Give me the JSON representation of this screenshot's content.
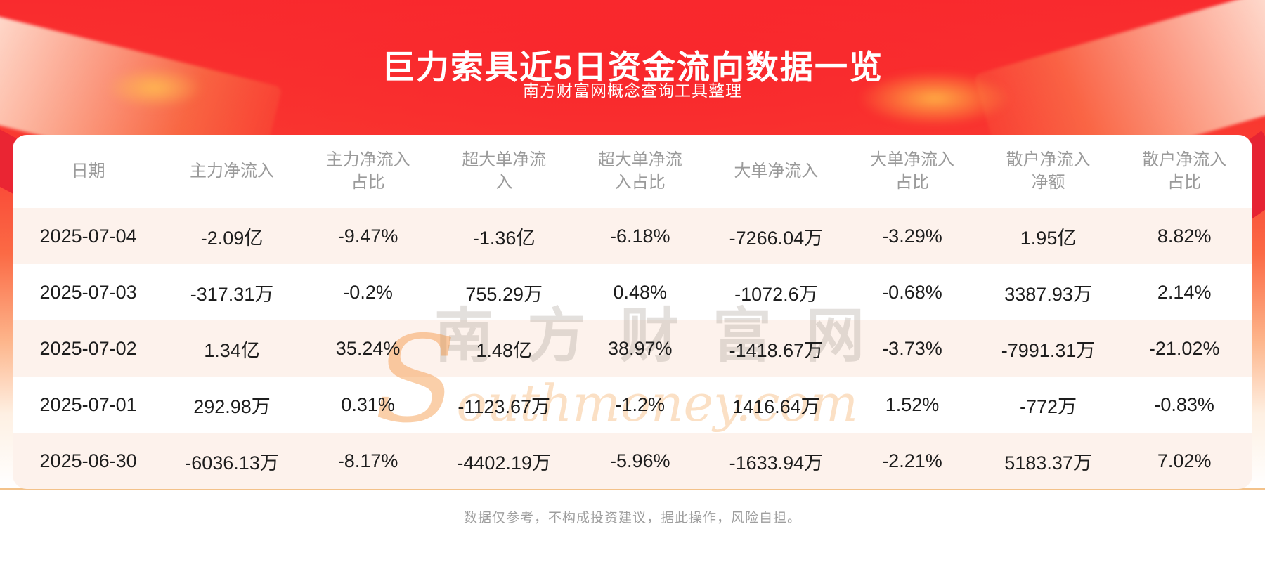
{
  "page": {
    "title": "巨力索具近5日资金流向数据一览",
    "subtitle": "南方财富网概念查询工具整理",
    "disclaimer": "数据仅参考，不构成投资建议，据此操作，风险自担。",
    "watermark_cn": "南方财富网",
    "watermark_en": "Southmoney.com"
  },
  "colors": {
    "banner_red": "#f92b2e",
    "banner_orange": "#fb6a45",
    "row_alt_bg": "#fdf2ec",
    "divider_tan": "#f3c28a",
    "header_text": "#9a9a9a",
    "cell_text": "#1d1d1d",
    "title_text": "#ffffff",
    "ribbon_red": "#e62333"
  },
  "table": {
    "columns": [
      "日期",
      "主力净流入",
      "主力净流入占比",
      "超大单净流入",
      "超大单净流入占比",
      "大单净流入",
      "大单净流入占比",
      "散户净流入净额",
      "散户净流入占比"
    ],
    "rows": [
      [
        "2025-07-04",
        "-2.09亿",
        "-9.47%",
        "-1.36亿",
        "-6.18%",
        "-7266.04万",
        "-3.29%",
        "1.95亿",
        "8.82%"
      ],
      [
        "2025-07-03",
        "-317.31万",
        "-0.2%",
        "755.29万",
        "0.48%",
        "-1072.6万",
        "-0.68%",
        "3387.93万",
        "2.14%"
      ],
      [
        "2025-07-02",
        "1.34亿",
        "35.24%",
        "1.48亿",
        "38.97%",
        "-1418.67万",
        "-3.73%",
        "-7991.31万",
        "-21.02%"
      ],
      [
        "2025-07-01",
        "292.98万",
        "0.31%",
        "-1123.67万",
        "-1.2%",
        "1416.64万",
        "1.52%",
        "-772万",
        "-0.83%"
      ],
      [
        "2025-06-30",
        "-6036.13万",
        "-8.17%",
        "-4402.19万",
        "-5.96%",
        "-1633.94万",
        "-2.21%",
        "5183.37万",
        "7.02%"
      ]
    ]
  },
  "chart_data": {
    "type": "table",
    "title": "巨力索具近5日资金流向数据一览",
    "subtitle": "南方财富网概念查询工具整理",
    "columns": [
      "日期",
      "主力净流入",
      "主力净流入占比",
      "超大单净流入",
      "超大单净流入占比",
      "大单净流入",
      "大单净流入占比",
      "散户净流入净额",
      "散户净流入占比"
    ],
    "rows": [
      [
        "2025-07-04",
        "-2.09亿",
        "-9.47%",
        "-1.36亿",
        "-6.18%",
        "-7266.04万",
        "-3.29%",
        "1.95亿",
        "8.82%"
      ],
      [
        "2025-07-03",
        "-317.31万",
        "-0.2%",
        "755.29万",
        "0.48%",
        "-1072.6万",
        "-0.68%",
        "3387.93万",
        "2.14%"
      ],
      [
        "2025-07-02",
        "1.34亿",
        "35.24%",
        "1.48亿",
        "38.97%",
        "-1418.67万",
        "-3.73%",
        "-7991.31万",
        "-21.02%"
      ],
      [
        "2025-07-01",
        "292.98万",
        "0.31%",
        "-1123.67万",
        "-1.2%",
        "1416.64万",
        "1.52%",
        "-772万",
        "-0.83%"
      ],
      [
        "2025-06-30",
        "-6036.13万",
        "-8.17%",
        "-4402.19万",
        "-5.96%",
        "-1633.94万",
        "-2.21%",
        "5183.37万",
        "7.02%"
      ]
    ]
  }
}
